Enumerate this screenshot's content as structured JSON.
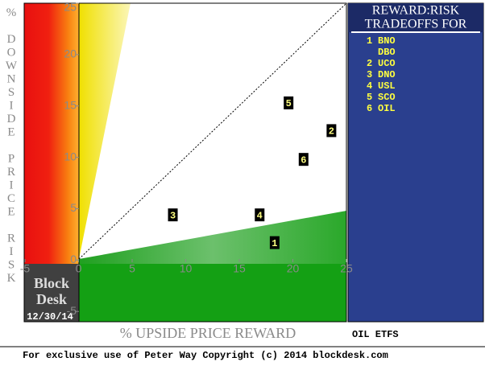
{
  "chart_data": {
    "type": "scatter",
    "title": [
      "REWARD:RISK",
      "TRADEOFFS FOR"
    ],
    "subtitle": "OIL ETFS",
    "x_label": "% UPSIDE PRICE REWARD",
    "y_label": "% DOWNSIDE PRICE RISK",
    "xlim": [
      -5,
      25
    ],
    "ylim": [
      -6,
      25
    ],
    "xticks": [
      -5,
      0,
      5,
      10,
      15,
      20,
      25
    ],
    "yticks": [
      -5,
      0,
      5,
      10,
      15,
      20,
      25
    ],
    "points": [
      {
        "label": "1",
        "x": 18.3,
        "y": 1.7
      },
      {
        "label": "2",
        "x": 23.6,
        "y": 12.6
      },
      {
        "label": "3",
        "x": 8.8,
        "y": 4.4
      },
      {
        "label": "4",
        "x": 16.9,
        "y": 4.4
      },
      {
        "label": "5",
        "x": 19.6,
        "y": 15.3
      },
      {
        "label": "6",
        "x": 21.0,
        "y": 9.8
      }
    ],
    "point_color": "#000000",
    "label_color": "#ffff80",
    "legend": [
      {
        "number": "1",
        "name": "BNO"
      },
      {
        "name": "DBO"
      },
      {
        "number": "2",
        "name": "UCO"
      },
      {
        "number": "3",
        "name": "DNO"
      },
      {
        "number": "4",
        "name": "USL"
      },
      {
        "number": "5",
        "name": "SCO"
      },
      {
        "number": "6",
        "name": "OIL"
      }
    ]
  },
  "brand": {
    "name": [
      "Block",
      "Desk"
    ],
    "date": "12/30/14"
  },
  "footer": "For exclusive use of Peter Way Copyright (c) 2014 blockdesk.com"
}
